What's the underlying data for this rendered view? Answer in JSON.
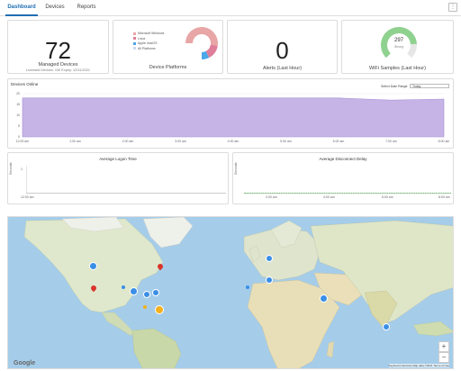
{
  "tabs": [
    {
      "label": "Dashboard",
      "active": true
    },
    {
      "label": "Devices",
      "active": false
    },
    {
      "label": "Reports",
      "active": false
    }
  ],
  "managed": {
    "value": "72",
    "caption": "Managed Devices",
    "sub": "Licensed Devices: 100   Expiry: 12/31/2021"
  },
  "platforms": {
    "caption": "Device Platforms",
    "legend": [
      {
        "label": "Microsoft Windows",
        "color": "#e8a6a6"
      },
      {
        "label": "Linux",
        "color": "#de7e99"
      },
      {
        "label": "Apple macOS",
        "color": "#4aa7e8"
      },
      {
        "label": "All Platforms",
        "color": "#c9d9ee"
      }
    ],
    "slices": [
      {
        "label": "Microsoft Windows",
        "value": 35,
        "color": "#e8a6a6"
      },
      {
        "label": "Linux",
        "value": 10,
        "color": "#de7e99"
      },
      {
        "label": "Apple macOS",
        "value": 5,
        "color": "#4aa7e8"
      }
    ]
  },
  "alerts": {
    "value": "0",
    "caption": "Alerts (Last Hour)"
  },
  "wifi": {
    "value": "297",
    "sub": "Strong",
    "caption": "WiFi Samples (Last Hour)",
    "level": 0.82,
    "color": "#8fd18f"
  },
  "online": {
    "title": "Devices Online",
    "range_label": "Select Date Range:",
    "range_value": "Today",
    "y_ticks": [
      "20",
      "15",
      "10",
      "5",
      "0"
    ],
    "x_ticks": [
      "12:00 am",
      "1:00 am",
      "2:00 am",
      "3:00 am",
      "4:00 am",
      "5:00 am",
      "6:00 am",
      "7:00 am",
      "8:00 am"
    ]
  },
  "login": {
    "title": "Average Logon Time",
    "ylabel": "Seconds",
    "ytick": "1",
    "x_tick": "12:00 am"
  },
  "disconnect": {
    "title": "Average Disconnect Delay",
    "ylabel": "Seconds",
    "x_ticks": [
      "2:00 am",
      "4:00 am",
      "6:00 am",
      "8:00 am"
    ]
  },
  "map": {
    "brand": "Google",
    "attribution": "Keyboard shortcuts   Map data ©2021   Terms of Use",
    "zoom_in": "+",
    "zoom_out": "−"
  },
  "chart_data": [
    {
      "type": "area",
      "title": "Devices Online",
      "x": [
        "12:00 am",
        "1:00 am",
        "2:00 am",
        "3:00 am",
        "4:00 am",
        "5:00 am",
        "6:00 am",
        "7:00 am",
        "8:00 am"
      ],
      "series": [
        {
          "values": [
            18,
            18,
            18,
            18,
            18,
            18,
            18,
            17,
            17.5
          ]
        }
      ],
      "ylim": [
        0,
        20
      ],
      "color": "#c6b4e6"
    }
  ]
}
